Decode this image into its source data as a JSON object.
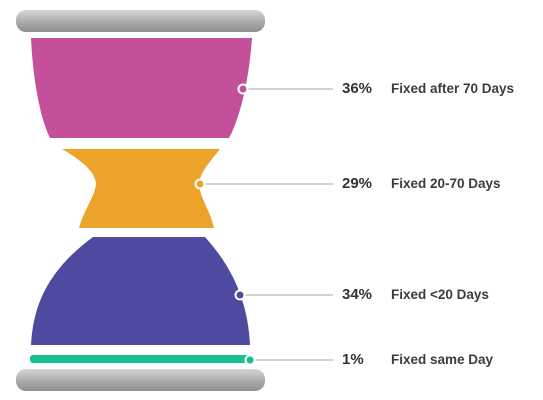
{
  "chart_data": {
    "type": "hourglass",
    "segments": [
      {
        "value": 36,
        "value_label": "36%",
        "label": "Fixed after 70 Days",
        "color": "#c4509b"
      },
      {
        "value": 29,
        "value_label": "29%",
        "label": "Fixed 20-70 Days",
        "color": "#eba32a"
      },
      {
        "value": 34,
        "value_label": "34%",
        "label": "Fixed <20 Days",
        "color": "#4e4a9f"
      },
      {
        "value": 1,
        "value_label": "1%",
        "label": "Fixed same Day",
        "color": "#17c08e"
      }
    ],
    "frame_color": "#a9aaab",
    "connector_color": "#b7b7b7"
  }
}
